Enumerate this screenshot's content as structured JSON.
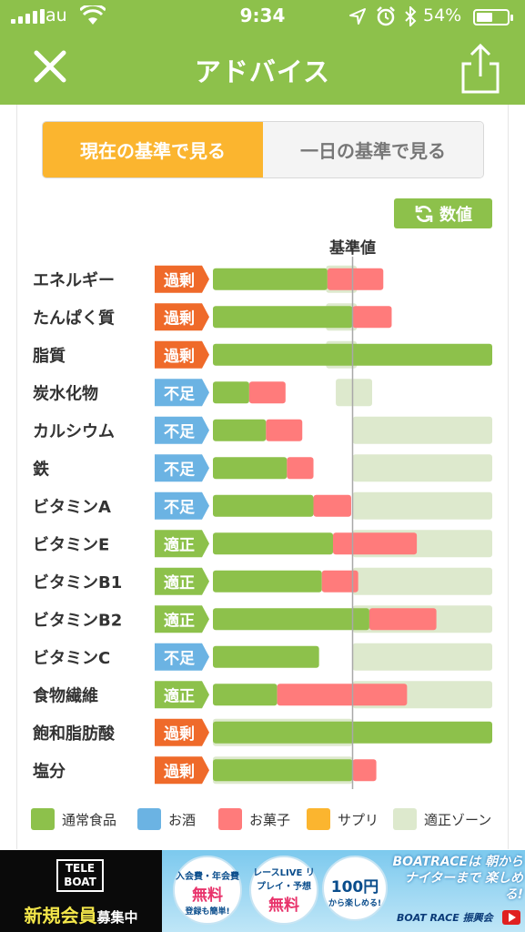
{
  "status_bar": {
    "carrier": "au",
    "time": "9:34",
    "battery_percent": "54%",
    "battery_level": 0.54
  },
  "nav": {
    "title": "アドバイス"
  },
  "tabs": [
    {
      "label": "現在の基準で見る",
      "active": true
    },
    {
      "label": "一日の基準で見る",
      "active": false
    }
  ],
  "values_button": {
    "label": "数値"
  },
  "colors": {
    "regular_food": "#8dc14b",
    "alcohol": "#6bb3e3",
    "snacks": "#ff7b7b",
    "supplement": "#fbb52f",
    "appropriate_zone": "#dde9cd",
    "excess": "#ef6a2a",
    "deficient": "#6bb3e3",
    "appropriate": "#8dc14b"
  },
  "chart_data": {
    "type": "bar",
    "reference_label": "基準値",
    "categories": [
      "エネルギー",
      "たんぱく質",
      "脂質",
      "炭水化物",
      "カルシウム",
      "鉄",
      "ビタミンA",
      "ビタミンE",
      "ビタミンB1",
      "ビタミンB2",
      "ビタミンC",
      "食物繊維",
      "飽和脂肪酸",
      "塩分"
    ],
    "status": [
      "過剰",
      "過剰",
      "過剰",
      "不足",
      "不足",
      "不足",
      "不足",
      "適正",
      "適正",
      "適正",
      "不足",
      "適正",
      "過剰",
      "過剰"
    ],
    "unit": "percent of reference value",
    "series": [
      {
        "name": "通常食品",
        "values": [
          82,
          100,
          200,
          26,
          38,
          53,
          72,
          86,
          78,
          112,
          76,
          46,
          200,
          100
        ]
      },
      {
        "name": "お菓子",
        "values": [
          40,
          28,
          0,
          26,
          26,
          19,
          27,
          60,
          26,
          48,
          0,
          93,
          0,
          17
        ]
      }
    ],
    "appropriate_zone": [
      [
        81,
        103
      ],
      [
        81,
        103
      ],
      [
        81,
        103
      ],
      [
        88,
        114
      ],
      [
        100,
        200
      ],
      [
        100,
        200
      ],
      [
        100,
        200
      ],
      [
        100,
        200
      ],
      [
        100,
        200
      ],
      [
        100,
        200
      ],
      [
        100,
        200
      ],
      [
        100,
        200
      ],
      [
        0,
        100
      ],
      [
        0,
        100
      ]
    ],
    "xlim": [
      0,
      200
    ]
  },
  "legend": [
    {
      "label": "通常食品",
      "color": "#8dc14b"
    },
    {
      "label": "お酒",
      "color": "#6bb3e3"
    },
    {
      "label": "お菓子",
      "color": "#ff7b7b"
    },
    {
      "label": "サプリ",
      "color": "#fbb52f"
    },
    {
      "label": "適正ゾーン",
      "color": "#dde9cd"
    }
  ],
  "ad": {
    "logo": "TELE BOAT",
    "member": "新規会員",
    "member_suffix": "募集中",
    "bubble1_small": "入会費・年会費",
    "bubble1_big": "無料",
    "bubble1_sub": "登録も簡単!",
    "bubble2_small": "レースLIVE リプレイ・予想",
    "bubble2_big": "無料",
    "bubble3_big": "100円",
    "bubble3_sub": "から楽しめる!",
    "headline": "BOATRACEは 朝からナイターまで 楽しめる!",
    "sponsor": "BOAT RACE 振興会"
  }
}
